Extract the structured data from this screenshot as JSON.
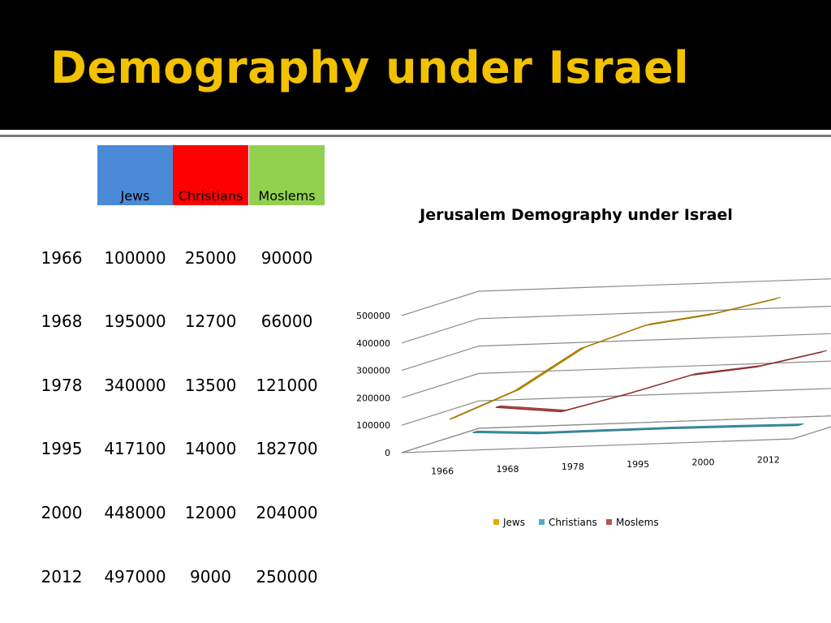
{
  "slide": {
    "title": "Demography under Israel"
  },
  "table": {
    "headers": [
      "Jews",
      "Christians",
      "Moslems"
    ],
    "header_colors": [
      "#4a8ad6",
      "#ff0000",
      "#92d050"
    ],
    "rows": [
      {
        "year": "1966",
        "jews": "100000",
        "christians": "25000",
        "moslems": "90000"
      },
      {
        "year": "1968",
        "jews": "195000",
        "christians": "12700",
        "moslems": "66000"
      },
      {
        "year": "1978",
        "jews": "340000",
        "christians": "13500",
        "moslems": "121000"
      },
      {
        "year": "1995",
        "jews": "417100",
        "christians": "14000",
        "moslems": "182700"
      },
      {
        "year": "2000",
        "jews": "448000",
        "christians": "12000",
        "moslems": "204000"
      },
      {
        "year": "2012",
        "jews": "497000",
        "christians": "9000",
        "moslems": "250000"
      }
    ]
  },
  "chart_data": {
    "type": "line",
    "title": "Jerusalem Demography under Israel",
    "categories": [
      "1966",
      "1968",
      "1978",
      "1995",
      "2000",
      "2012"
    ],
    "ylim": [
      0,
      500000
    ],
    "yticks": [
      "0",
      "100000",
      "200000",
      "300000",
      "400000",
      "500000"
    ],
    "grid": true,
    "legend_position": "bottom",
    "series": [
      {
        "name": "Jews",
        "color": "#e6a800",
        "values": [
          100000,
          195000,
          340000,
          417100,
          448000,
          497000
        ]
      },
      {
        "name": "Christians",
        "color": "#4bacc6",
        "values": [
          25000,
          12700,
          13500,
          14000,
          12000,
          9000
        ]
      },
      {
        "name": "Moslems",
        "color": "#c0504d",
        "values": [
          90000,
          66000,
          121000,
          182700,
          204000,
          250000
        ]
      }
    ]
  }
}
